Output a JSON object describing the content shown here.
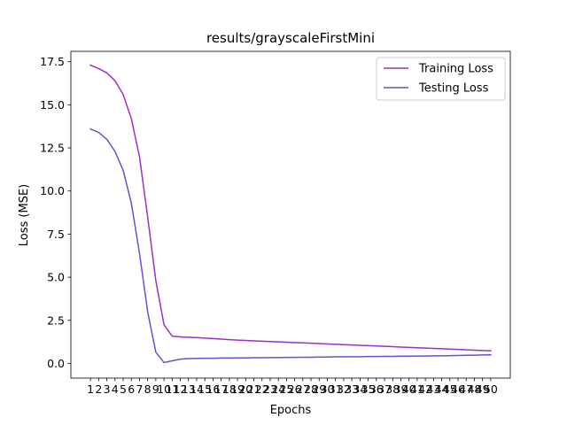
{
  "chart_data": {
    "type": "line",
    "title": "results/grayscaleFirstMini",
    "xlabel": "Epochs",
    "ylabel": "Loss (MSE)",
    "x": [
      1,
      2,
      3,
      4,
      5,
      6,
      7,
      8,
      9,
      10,
      11,
      12,
      13,
      14,
      15,
      16,
      17,
      18,
      19,
      20,
      21,
      22,
      23,
      24,
      25,
      26,
      27,
      28,
      29,
      30,
      31,
      32,
      33,
      34,
      35,
      36,
      37,
      38,
      39,
      40,
      41,
      42,
      43,
      44,
      45,
      46,
      47,
      48,
      49,
      50
    ],
    "xticks": [
      "1",
      "2",
      "3",
      "4",
      "5",
      "6",
      "7",
      "8",
      "9",
      "10",
      "11",
      "12",
      "13",
      "14",
      "15",
      "16",
      "17",
      "18",
      "19",
      "20",
      "21",
      "22",
      "23",
      "24",
      "25",
      "26",
      "27",
      "28",
      "29",
      "30",
      "31",
      "32",
      "33",
      "34",
      "35",
      "36",
      "37",
      "38",
      "39",
      "40",
      "41",
      "42",
      "43",
      "44",
      "45",
      "46",
      "47",
      "48",
      "49",
      "50"
    ],
    "yticks": [
      "0.0",
      "2.5",
      "5.0",
      "7.5",
      "10.0",
      "12.5",
      "15.0",
      "17.5"
    ],
    "ytick_values": [
      0,
      2.5,
      5.0,
      7.5,
      10.0,
      12.5,
      15.0,
      17.5
    ],
    "ylim": [
      -0.85,
      18.1
    ],
    "xlim": [
      -1.4,
      52.4
    ],
    "grid": false,
    "legend_position": "top-right",
    "series": [
      {
        "name": "Training Loss",
        "color": "#9b30c9",
        "values": [
          17.3,
          17.1,
          16.85,
          16.4,
          15.6,
          14.2,
          12.0,
          8.5,
          4.8,
          2.25,
          1.58,
          1.54,
          1.52,
          1.5,
          1.47,
          1.44,
          1.41,
          1.38,
          1.35,
          1.33,
          1.31,
          1.29,
          1.27,
          1.25,
          1.23,
          1.21,
          1.19,
          1.17,
          1.15,
          1.13,
          1.11,
          1.09,
          1.07,
          1.05,
          1.03,
          1.01,
          0.99,
          0.97,
          0.95,
          0.93,
          0.91,
          0.89,
          0.87,
          0.85,
          0.83,
          0.81,
          0.79,
          0.77,
          0.75,
          0.73
        ]
      },
      {
        "name": "Testing Loss",
        "color": "#6a4fd0",
        "values": [
          13.6,
          13.4,
          13.0,
          12.3,
          11.2,
          9.3,
          6.4,
          3.0,
          0.65,
          0.05,
          0.15,
          0.25,
          0.28,
          0.29,
          0.3,
          0.3,
          0.31,
          0.31,
          0.32,
          0.32,
          0.33,
          0.33,
          0.34,
          0.34,
          0.35,
          0.35,
          0.36,
          0.36,
          0.37,
          0.37,
          0.38,
          0.38,
          0.39,
          0.39,
          0.4,
          0.4,
          0.41,
          0.41,
          0.42,
          0.42,
          0.43,
          0.43,
          0.44,
          0.44,
          0.45,
          0.46,
          0.47,
          0.48,
          0.49,
          0.5
        ]
      }
    ]
  }
}
